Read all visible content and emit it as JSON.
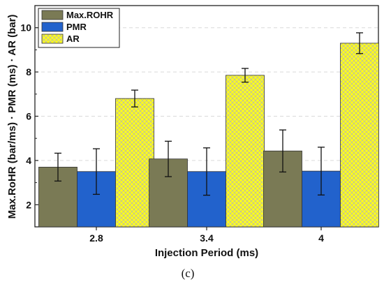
{
  "chart_data": {
    "type": "bar",
    "categories": [
      "2.8",
      "3.4",
      "4"
    ],
    "series": [
      {
        "name": "Max.ROHR",
        "values": [
          3.7,
          4.07,
          4.43
        ],
        "errors": [
          0.63,
          0.8,
          0.95
        ],
        "color": "#7a7a55",
        "pattern": "solid"
      },
      {
        "name": "PMR",
        "values": [
          3.5,
          3.5,
          3.52
        ],
        "errors": [
          1.03,
          1.07,
          1.08
        ],
        "color": "#2262cc",
        "pattern": "solid"
      },
      {
        "name": "AR",
        "values": [
          6.8,
          7.85,
          9.3
        ],
        "errors": [
          0.38,
          0.31,
          0.47
        ],
        "color": "#ffff1a",
        "pattern": "crosshatch"
      }
    ],
    "xlabel": "Injection Period (ms)",
    "ylabel": "Max.RoHR (bar/ms) · PMR (ms) · AR (bar)",
    "ylim": [
      1,
      11
    ],
    "yticks": [
      2,
      4,
      6,
      8,
      10
    ],
    "grid": true,
    "legend_position": "top-left"
  },
  "caption": "(c)"
}
